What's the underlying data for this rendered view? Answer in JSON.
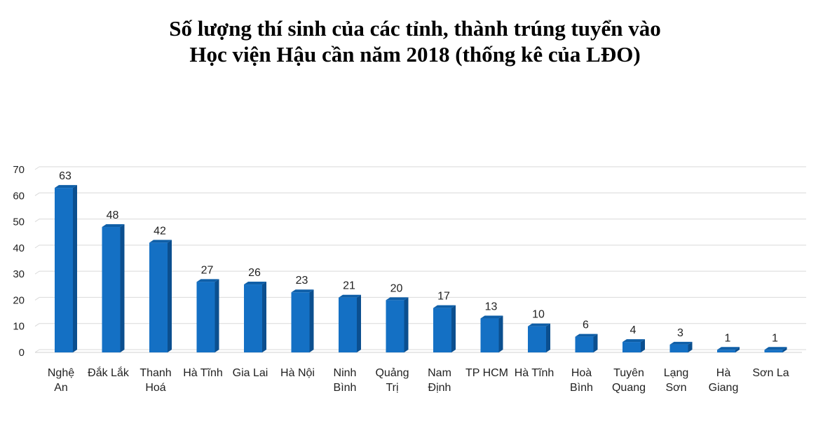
{
  "chart_data": {
    "type": "bar",
    "title_lines": [
      "Số lượng thí sinh của các tỉnh, thành trúng tuyển vào",
      "Học viện Hậu cần năm 2018 (thống kê của LĐO)"
    ],
    "xlabel": "",
    "ylabel": "",
    "ylim": [
      0,
      70
    ],
    "yticks": [
      0,
      10,
      20,
      30,
      40,
      50,
      60,
      70
    ],
    "grid": true,
    "legend": "none",
    "categories": [
      [
        "Nghệ",
        "An"
      ],
      [
        "Đắk Lắk"
      ],
      [
        "Thanh",
        "Hoá"
      ],
      [
        "Hà Tĩnh"
      ],
      [
        "Gia Lai"
      ],
      [
        "Hà Nội"
      ],
      [
        "Ninh",
        "Bình"
      ],
      [
        "Quảng",
        "Trị"
      ],
      [
        "Nam",
        "Định"
      ],
      [
        "TP HCM"
      ],
      [
        "Hà Tĩnh"
      ],
      [
        "Hoà",
        "Bình"
      ],
      [
        "Tuyên",
        "Quang"
      ],
      [
        "Lạng",
        "Sơn"
      ],
      [
        "Hà",
        "Giang"
      ],
      [
        "Sơn La"
      ]
    ],
    "values": [
      63,
      48,
      42,
      27,
      26,
      23,
      21,
      20,
      17,
      13,
      10,
      6,
      4,
      3,
      1,
      1
    ],
    "colors": {
      "bar_front": "#1470C4",
      "bar_side": "#0B4F8F",
      "bar_top": "#0F5FA8",
      "gridline": "#D9D9D9",
      "floor": "#D0D0D0"
    }
  }
}
